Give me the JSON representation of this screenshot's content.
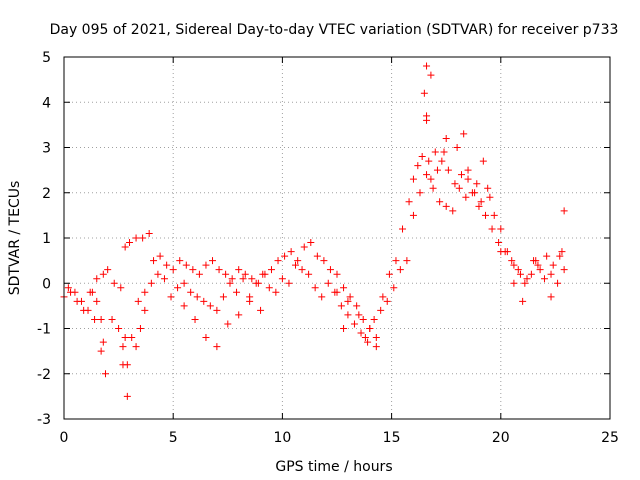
{
  "chart_data": {
    "type": "scatter",
    "title": "Day 095 of 2021, Sidereal Day-to-day VTEC variation (SDTVAR) for receiver p733",
    "xlabel": "GPS time / hours",
    "ylabel": "SDTVAR / TECUs",
    "xlim": [
      0,
      25
    ],
    "ylim": [
      -3,
      5
    ],
    "xticks": [
      "0",
      "5",
      "10",
      "15",
      "20",
      "25"
    ],
    "yticks": [
      "-3",
      "-2",
      "-1",
      "0",
      "1",
      "2",
      "3",
      "4",
      "5"
    ],
    "grid": true,
    "marker": "+",
    "marker_color": "#ff0000",
    "series": [
      {
        "name": "SDTVAR",
        "x": [
          0.0,
          0.3,
          0.6,
          0.9,
          1.2,
          1.5,
          1.8,
          2.0,
          2.3,
          2.6,
          2.8,
          3.0,
          3.3,
          3.6,
          3.9,
          4.1,
          4.4,
          4.7,
          5.0,
          5.3,
          5.6,
          5.9,
          6.2,
          6.5,
          6.8,
          7.1,
          7.4,
          7.7,
          8.0,
          8.3,
          8.6,
          8.9,
          9.2,
          9.5,
          9.8,
          10.1,
          10.4,
          10.7,
          11.0,
          11.3,
          11.6,
          11.9,
          12.2,
          12.5,
          12.8,
          13.1,
          13.4,
          13.7,
          14.0,
          14.3,
          14.6,
          14.9,
          15.2,
          15.5,
          15.8,
          16.0,
          16.2,
          16.4,
          16.6,
          16.8,
          17.0,
          17.3,
          17.6,
          17.9,
          18.2,
          18.5,
          18.8,
          19.1,
          19.4,
          19.7,
          20.0,
          20.3,
          20.6,
          20.9,
          21.2,
          21.5,
          21.8,
          22.1,
          22.4,
          22.7,
          22.9,
          0.2,
          0.5,
          0.8,
          1.1,
          1.4,
          1.7,
          1.9,
          2.2,
          2.5,
          2.7,
          2.9,
          3.1,
          3.4,
          3.7,
          4.0,
          4.3,
          4.6,
          4.9,
          5.2,
          5.5,
          5.8,
          6.1,
          6.4,
          6.7,
          7.0,
          7.3,
          7.6,
          7.9,
          8.2,
          8.5,
          8.8,
          9.1,
          9.4,
          9.7,
          10.0,
          10.3,
          10.6,
          10.9,
          11.2,
          11.5,
          11.8,
          12.1,
          12.4,
          12.7,
          13.0,
          13.3,
          13.6,
          13.9,
          14.2,
          14.5,
          14.8,
          15.1,
          15.4,
          15.7,
          16.0,
          16.3,
          16.6,
          16.9,
          17.2,
          17.5,
          17.8,
          18.1,
          18.4,
          18.7,
          19.0,
          19.3,
          19.6,
          19.9,
          20.2,
          20.5,
          20.8,
          21.1,
          21.4,
          21.7,
          22.0,
          22.3,
          22.6,
          22.9,
          1.3,
          1.5,
          1.7,
          1.8,
          2.7,
          2.8,
          2.9,
          3.3,
          3.5,
          3.7,
          5.5,
          6.0,
          6.5,
          7.0,
          7.5,
          8.0,
          8.5,
          9.0,
          12.5,
          13.0,
          13.5,
          14.0,
          14.3,
          16.5,
          16.6,
          16.7,
          16.8,
          17.1,
          17.5,
          18.0,
          18.3,
          18.5,
          18.9,
          19.2,
          19.5,
          20.0,
          20.6,
          21.0,
          21.6,
          22.3,
          22.8,
          16.6,
          17.4,
          12.8,
          13.8
        ],
        "y": [
          -0.3,
          -0.2,
          -0.4,
          -0.6,
          -0.2,
          0.1,
          0.2,
          0.3,
          0.0,
          -0.1,
          0.8,
          0.9,
          1.0,
          1.0,
          1.1,
          0.5,
          0.6,
          0.4,
          0.3,
          0.5,
          0.4,
          0.3,
          0.2,
          0.4,
          0.5,
          0.3,
          0.2,
          0.1,
          0.3,
          0.2,
          0.1,
          0.0,
          0.2,
          0.3,
          0.5,
          0.6,
          0.7,
          0.5,
          0.8,
          0.9,
          0.6,
          0.5,
          0.3,
          0.2,
          -0.1,
          -0.3,
          -0.5,
          -0.8,
          -1.0,
          -1.2,
          -0.3,
          0.2,
          0.5,
          1.2,
          1.8,
          2.3,
          2.6,
          2.8,
          3.6,
          4.6,
          2.9,
          2.7,
          2.5,
          2.2,
          2.4,
          2.3,
          2.0,
          1.8,
          2.1,
          1.5,
          1.2,
          0.7,
          0.4,
          0.2,
          0.1,
          0.5,
          0.3,
          0.6,
          0.4,
          0.6,
          1.6,
          -0.1,
          -0.2,
          -0.4,
          -0.6,
          -0.8,
          -1.5,
          -2.0,
          -0.8,
          -1.0,
          -1.8,
          -2.5,
          -1.2,
          -0.4,
          -0.2,
          0.0,
          0.2,
          0.1,
          -0.3,
          -0.1,
          0.0,
          -0.2,
          -0.3,
          -0.4,
          -0.5,
          -0.6,
          -0.3,
          0.0,
          -0.2,
          0.1,
          -0.3,
          0.0,
          0.2,
          -0.1,
          -0.2,
          0.1,
          0.0,
          0.4,
          0.3,
          0.2,
          -0.1,
          -0.3,
          0.0,
          -0.2,
          -0.5,
          -0.7,
          -0.9,
          -1.1,
          -1.3,
          -0.8,
          -0.6,
          -0.4,
          -0.1,
          0.3,
          0.5,
          1.5,
          2.0,
          2.4,
          2.1,
          1.8,
          1.7,
          1.6,
          2.1,
          1.9,
          2.0,
          1.7,
          1.5,
          1.2,
          0.9,
          0.7,
          0.5,
          0.3,
          0.0,
          0.2,
          0.4,
          0.1,
          0.2,
          0.0,
          0.3,
          -0.2,
          -0.4,
          -0.8,
          -1.3,
          -1.4,
          -1.2,
          -1.8,
          -1.4,
          -1.0,
          -0.6,
          -0.5,
          -0.8,
          -1.2,
          -1.4,
          -0.9,
          -0.7,
          -0.4,
          -0.6,
          -0.2,
          -0.4,
          -0.7,
          -1.0,
          -1.4,
          4.2,
          3.7,
          2.7,
          2.3,
          2.5,
          3.2,
          3.0,
          3.3,
          2.5,
          2.2,
          2.7,
          1.9,
          0.7,
          0.0,
          -0.4,
          0.5,
          -0.3,
          0.7,
          4.8,
          2.9,
          -1.0,
          -1.2
        ]
      }
    ]
  }
}
